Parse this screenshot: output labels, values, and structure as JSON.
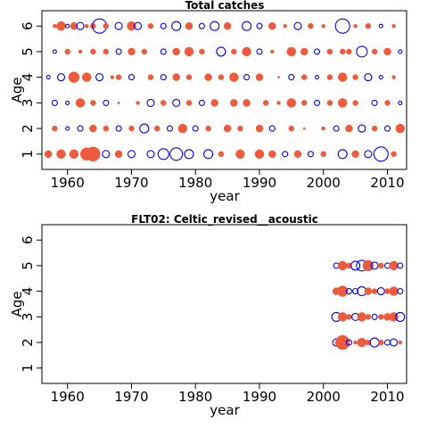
{
  "figure": {
    "colors": {
      "positive": "#EE5A3C",
      "negative": "#0000FF",
      "frame": "#000000"
    }
  },
  "chart_data": [
    {
      "type": "bubble",
      "title": "Total catches",
      "xlabel": "year",
      "ylabel": "Age",
      "xlim": [
        1956,
        2013
      ],
      "ylim": [
        0.4,
        6.6
      ],
      "xticks": [
        1960,
        1970,
        1980,
        1990,
        2000,
        2010
      ],
      "yticks": [
        1,
        2,
        3,
        4,
        5,
        6
      ],
      "grid": false,
      "legend": "none",
      "encoding": "residual bubbles: filled orange = positive, open blue = negative; radius ∝ |value|",
      "points": [
        {
          "year": 1958,
          "age": 6,
          "r": 0.2
        },
        {
          "year": 1959,
          "age": 6,
          "r": 0.5
        },
        {
          "year": 1960,
          "age": 6,
          "r": -0.2
        },
        {
          "year": 1961,
          "age": 6,
          "r": 0.4
        },
        {
          "year": 1962,
          "age": 6,
          "r": -0.4
        },
        {
          "year": 1963,
          "age": 6,
          "r": 0.2
        },
        {
          "year": 1964,
          "age": 6,
          "r": 0.3
        },
        {
          "year": 1965,
          "age": 6,
          "r": -0.8
        },
        {
          "year": 1966,
          "age": 6,
          "r": 0.3
        },
        {
          "year": 1968,
          "age": 6,
          "r": -0.4
        },
        {
          "year": 1970,
          "age": 6,
          "r": 0.5
        },
        {
          "year": 1971,
          "age": 6,
          "r": -0.4
        },
        {
          "year": 1973,
          "age": 6,
          "r": 0.3
        },
        {
          "year": 1975,
          "age": 6,
          "r": -0.3
        },
        {
          "year": 1977,
          "age": 6,
          "r": -0.5
        },
        {
          "year": 1979,
          "age": 6,
          "r": 0.4
        },
        {
          "year": 1981,
          "age": 6,
          "r": -0.3
        },
        {
          "year": 1983,
          "age": 6,
          "r": -0.5
        },
        {
          "year": 1985,
          "age": 6,
          "r": 0.4
        },
        {
          "year": 1988,
          "age": 6,
          "r": -0.5
        },
        {
          "year": 1990,
          "age": 6,
          "r": -0.3
        },
        {
          "year": 1992,
          "age": 6,
          "r": 0.4
        },
        {
          "year": 1994,
          "age": 6,
          "r": 0.2
        },
        {
          "year": 1996,
          "age": 6,
          "r": -0.4
        },
        {
          "year": 1998,
          "age": 6,
          "r": 0.3
        },
        {
          "year": 2000,
          "age": 6,
          "r": 0.2
        },
        {
          "year": 2003,
          "age": 6,
          "r": -0.8
        },
        {
          "year": 2005,
          "age": 6,
          "r": 0.2
        },
        {
          "year": 2007,
          "age": 6,
          "r": 0.3
        },
        {
          "year": 2009,
          "age": 6,
          "r": -0.2
        },
        {
          "year": 2011,
          "age": 6,
          "r": 0.2
        },
        {
          "year": 1958,
          "age": 5,
          "r": -0.2
        },
        {
          "year": 1960,
          "age": 5,
          "r": 0.3
        },
        {
          "year": 1962,
          "age": 5,
          "r": 0.2
        },
        {
          "year": 1964,
          "age": 5,
          "r": 0.3
        },
        {
          "year": 1966,
          "age": 5,
          "r": 0.3
        },
        {
          "year": 1968,
          "age": 5,
          "r": -0.3
        },
        {
          "year": 1970,
          "age": 5,
          "r": 0.4
        },
        {
          "year": 1972,
          "age": 5,
          "r": 0.3
        },
        {
          "year": 1975,
          "age": 5,
          "r": -0.3
        },
        {
          "year": 1977,
          "age": 5,
          "r": 0.4
        },
        {
          "year": 1979,
          "age": 5,
          "r": 0.5
        },
        {
          "year": 1981,
          "age": 5,
          "r": 0.3
        },
        {
          "year": 1984,
          "age": 5,
          "r": -0.5
        },
        {
          "year": 1986,
          "age": 5,
          "r": 0.3
        },
        {
          "year": 1988,
          "age": 5,
          "r": 0.5
        },
        {
          "year": 1990,
          "age": 5,
          "r": -0.3
        },
        {
          "year": 1992,
          "age": 5,
          "r": 0.2
        },
        {
          "year": 1995,
          "age": 5,
          "r": 0.5
        },
        {
          "year": 1997,
          "age": 5,
          "r": 0.4
        },
        {
          "year": 1999,
          "age": 5,
          "r": -0.3
        },
        {
          "year": 2001,
          "age": 5,
          "r": 0.3
        },
        {
          "year": 2003,
          "age": 5,
          "r": 0.3
        },
        {
          "year": 2004,
          "age": 5,
          "r": 0.3
        },
        {
          "year": 2006,
          "age": 5,
          "r": -0.6
        },
        {
          "year": 2008,
          "age": 5,
          "r": 0.3
        },
        {
          "year": 2010,
          "age": 5,
          "r": 0.4
        },
        {
          "year": 2012,
          "age": 5,
          "r": -0.2
        },
        {
          "year": 1957,
          "age": 4,
          "r": -0.2
        },
        {
          "year": 1959,
          "age": 4,
          "r": -0.4
        },
        {
          "year": 1961,
          "age": 4,
          "r": 0.6
        },
        {
          "year": 1963,
          "age": 4,
          "r": 0.5
        },
        {
          "year": 1965,
          "age": 4,
          "r": -0.4
        },
        {
          "year": 1967,
          "age": 4,
          "r": 0.2
        },
        {
          "year": 1968,
          "age": 4,
          "r": 0.3
        },
        {
          "year": 1970,
          "age": 4,
          "r": -0.3
        },
        {
          "year": 1973,
          "age": 4,
          "r": 0.3
        },
        {
          "year": 1975,
          "age": 4,
          "r": -0.3
        },
        {
          "year": 1977,
          "age": 4,
          "r": 0.4
        },
        {
          "year": 1979,
          "age": 4,
          "r": 0.3
        },
        {
          "year": 1982,
          "age": 4,
          "r": 0.4
        },
        {
          "year": 1984,
          "age": 4,
          "r": 0.3
        },
        {
          "year": 1986,
          "age": 4,
          "r": 0.5
        },
        {
          "year": 1988,
          "age": 4,
          "r": -0.3
        },
        {
          "year": 1990,
          "age": 4,
          "r": 0.4
        },
        {
          "year": 1993,
          "age": 4,
          "r": 0.1
        },
        {
          "year": 1995,
          "age": 4,
          "r": -0.3
        },
        {
          "year": 1997,
          "age": 4,
          "r": 0.3
        },
        {
          "year": 1999,
          "age": 4,
          "r": -0.2
        },
        {
          "year": 2001,
          "age": 4,
          "r": 0.3
        },
        {
          "year": 2003,
          "age": 4,
          "r": 0.5
        },
        {
          "year": 2005,
          "age": 4,
          "r": 0.3
        },
        {
          "year": 2007,
          "age": 4,
          "r": -0.4
        },
        {
          "year": 2009,
          "age": 4,
          "r": -0.2
        },
        {
          "year": 2011,
          "age": 4,
          "r": 0.2
        },
        {
          "year": 1958,
          "age": 3,
          "r": -0.3
        },
        {
          "year": 1960,
          "age": 3,
          "r": -0.2
        },
        {
          "year": 1962,
          "age": 3,
          "r": 0.5
        },
        {
          "year": 1964,
          "age": 3,
          "r": 0.3
        },
        {
          "year": 1966,
          "age": 3,
          "r": -0.3
        },
        {
          "year": 1968,
          "age": 3,
          "r": 0.1
        },
        {
          "year": 1971,
          "age": 3,
          "r": 0.2
        },
        {
          "year": 1973,
          "age": 3,
          "r": -0.4
        },
        {
          "year": 1975,
          "age": 3,
          "r": 0.3
        },
        {
          "year": 1977,
          "age": 3,
          "r": -0.4
        },
        {
          "year": 1979,
          "age": 3,
          "r": 0.3
        },
        {
          "year": 1981,
          "age": 3,
          "r": -0.3
        },
        {
          "year": 1983,
          "age": 3,
          "r": 0.4
        },
        {
          "year": 1986,
          "age": 3,
          "r": 0.4
        },
        {
          "year": 1988,
          "age": 3,
          "r": 0.4
        },
        {
          "year": 1991,
          "age": 3,
          "r": 0.3
        },
        {
          "year": 1993,
          "age": 3,
          "r": 0.2
        },
        {
          "year": 1995,
          "age": 3,
          "r": 0.5
        },
        {
          "year": 1997,
          "age": 3,
          "r": 0.3
        },
        {
          "year": 1999,
          "age": 3,
          "r": -0.3
        },
        {
          "year": 2001,
          "age": 3,
          "r": 0.3
        },
        {
          "year": 2003,
          "age": 3,
          "r": 0.5
        },
        {
          "year": 2005,
          "age": 3,
          "r": 0.3
        },
        {
          "year": 2008,
          "age": 3,
          "r": -0.3
        },
        {
          "year": 2010,
          "age": 3,
          "r": 0.3
        },
        {
          "year": 2012,
          "age": 3,
          "r": -0.2
        },
        {
          "year": 1958,
          "age": 2,
          "r": 0.3
        },
        {
          "year": 1960,
          "age": 2,
          "r": -0.2
        },
        {
          "year": 1962,
          "age": 2,
          "r": -0.3
        },
        {
          "year": 1964,
          "age": 2,
          "r": 0.4
        },
        {
          "year": 1966,
          "age": 2,
          "r": 0.3
        },
        {
          "year": 1968,
          "age": 2,
          "r": -0.3
        },
        {
          "year": 1970,
          "age": 2,
          "r": 0.3
        },
        {
          "year": 1972,
          "age": 2,
          "r": -0.5
        },
        {
          "year": 1974,
          "age": 2,
          "r": 0.3
        },
        {
          "year": 1976,
          "age": 2,
          "r": -0.3
        },
        {
          "year": 1978,
          "age": 2,
          "r": 0.5
        },
        {
          "year": 1980,
          "age": 2,
          "r": -0.3
        },
        {
          "year": 1982,
          "age": 2,
          "r": 0.3
        },
        {
          "year": 1985,
          "age": 2,
          "r": 0.4
        },
        {
          "year": 1987,
          "age": 2,
          "r": 0.3
        },
        {
          "year": 1990,
          "age": 2,
          "r": 0.4
        },
        {
          "year": 1992,
          "age": 2,
          "r": -0.3
        },
        {
          "year": 1995,
          "age": 2,
          "r": 0.3
        },
        {
          "year": 1997,
          "age": 2,
          "r": 0.1
        },
        {
          "year": 2000,
          "age": 2,
          "r": 0.2
        },
        {
          "year": 2002,
          "age": 2,
          "r": -0.3
        },
        {
          "year": 2004,
          "age": 2,
          "r": 0.4
        },
        {
          "year": 2006,
          "age": 2,
          "r": -0.4
        },
        {
          "year": 2008,
          "age": 2,
          "r": 0.3
        },
        {
          "year": 2010,
          "age": 2,
          "r": -0.3
        },
        {
          "year": 2012,
          "age": 2,
          "r": 0.5
        },
        {
          "year": 1957,
          "age": 1,
          "r": 0.4
        },
        {
          "year": 1959,
          "age": 1,
          "r": 0.5
        },
        {
          "year": 1961,
          "age": 1,
          "r": 0.5
        },
        {
          "year": 1963,
          "age": 1,
          "r": 0.7
        },
        {
          "year": 1964,
          "age": 1,
          "r": 0.8
        },
        {
          "year": 1966,
          "age": 1,
          "r": -0.4
        },
        {
          "year": 1968,
          "age": 1,
          "r": 0.4
        },
        {
          "year": 1970,
          "age": 1,
          "r": -0.4
        },
        {
          "year": 1973,
          "age": 1,
          "r": -0.4
        },
        {
          "year": 1975,
          "age": 1,
          "r": -0.6
        },
        {
          "year": 1977,
          "age": 1,
          "r": -0.7
        },
        {
          "year": 1979,
          "age": 1,
          "r": -0.5
        },
        {
          "year": 1982,
          "age": 1,
          "r": -0.5
        },
        {
          "year": 1984,
          "age": 1,
          "r": 0.3
        },
        {
          "year": 1987,
          "age": 1,
          "r": 0.5
        },
        {
          "year": 1990,
          "age": 1,
          "r": 0.5
        },
        {
          "year": 1992,
          "age": 1,
          "r": 0.4
        },
        {
          "year": 1994,
          "age": 1,
          "r": -0.3
        },
        {
          "year": 1996,
          "age": 1,
          "r": 0.4
        },
        {
          "year": 1998,
          "age": 1,
          "r": -0.3
        },
        {
          "year": 2000,
          "age": 1,
          "r": 0.3
        },
        {
          "year": 2003,
          "age": 1,
          "r": -0.5
        },
        {
          "year": 2005,
          "age": 1,
          "r": 0.4
        },
        {
          "year": 2007,
          "age": 1,
          "r": -0.4
        },
        {
          "year": 2009,
          "age": 1,
          "r": -0.8
        },
        {
          "year": 2011,
          "age": 1,
          "r": 0.3
        }
      ]
    },
    {
      "type": "bubble",
      "title": "FLT02: Celtic_revised__acoustic",
      "xlabel": "year",
      "ylabel": "Age",
      "xlim": [
        1956,
        2013
      ],
      "ylim": [
        0.4,
        6.6
      ],
      "xticks": [
        1960,
        1970,
        1980,
        1990,
        2000,
        2010
      ],
      "yticks": [
        1,
        2,
        3,
        4,
        5,
        6
      ],
      "grid": false,
      "legend": "none",
      "encoding": "residual bubbles: filled orange = positive, open blue = negative; radius ∝ |value|",
      "points": [
        {
          "year": 2002,
          "age": 5,
          "r": -0.3
        },
        {
          "year": 2003,
          "age": 5,
          "r": 0.5
        },
        {
          "year": 2004,
          "age": 5,
          "r": 0.3
        },
        {
          "year": 2005,
          "age": 5,
          "r": -0.5
        },
        {
          "year": 2006,
          "age": 5,
          "r": -0.6
        },
        {
          "year": 2007,
          "age": 5,
          "r": 0.6
        },
        {
          "year": 2008,
          "age": 5,
          "r": -0.4
        },
        {
          "year": 2009,
          "age": 5,
          "r": 0.3
        },
        {
          "year": 2010,
          "age": 5,
          "r": -0.3
        },
        {
          "year": 2011,
          "age": 5,
          "r": 0.5
        },
        {
          "year": 2012,
          "age": 5,
          "r": -0.3
        },
        {
          "year": 2002,
          "age": 4,
          "r": 0.4
        },
        {
          "year": 2003,
          "age": 4,
          "r": 0.6
        },
        {
          "year": 2004,
          "age": 4,
          "r": -0.3
        },
        {
          "year": 2005,
          "age": 4,
          "r": -0.3
        },
        {
          "year": 2006,
          "age": 4,
          "r": -0.5
        },
        {
          "year": 2007,
          "age": 4,
          "r": 0.4
        },
        {
          "year": 2008,
          "age": 4,
          "r": 0.3
        },
        {
          "year": 2009,
          "age": 4,
          "r": -0.4
        },
        {
          "year": 2010,
          "age": 4,
          "r": 0.3
        },
        {
          "year": 2011,
          "age": 4,
          "r": 0.5
        },
        {
          "year": 2012,
          "age": 4,
          "r": -0.3
        },
        {
          "year": 2002,
          "age": 3,
          "r": -0.5
        },
        {
          "year": 2003,
          "age": 3,
          "r": 0.5
        },
        {
          "year": 2004,
          "age": 3,
          "r": 0.3
        },
        {
          "year": 2005,
          "age": 3,
          "r": -0.4
        },
        {
          "year": 2006,
          "age": 3,
          "r": 0.5
        },
        {
          "year": 2007,
          "age": 3,
          "r": 0.3
        },
        {
          "year": 2008,
          "age": 3,
          "r": -0.3
        },
        {
          "year": 2009,
          "age": 3,
          "r": 0.3
        },
        {
          "year": 2010,
          "age": 3,
          "r": 0.4
        },
        {
          "year": 2011,
          "age": 3,
          "r": 0.5
        },
        {
          "year": 2012,
          "age": 3,
          "r": -0.5
        },
        {
          "year": 2002,
          "age": 2,
          "r": -0.4
        },
        {
          "year": 2003,
          "age": 2,
          "r": 0.8
        },
        {
          "year": 2004,
          "age": 2,
          "r": -0.3
        },
        {
          "year": 2005,
          "age": 2,
          "r": 0.2
        },
        {
          "year": 2006,
          "age": 2,
          "r": 0.5
        },
        {
          "year": 2007,
          "age": 2,
          "r": 0.3
        },
        {
          "year": 2008,
          "age": 2,
          "r": -0.5
        },
        {
          "year": 2009,
          "age": 2,
          "r": 0.3
        },
        {
          "year": 2010,
          "age": 2,
          "r": -0.3
        },
        {
          "year": 2011,
          "age": 2,
          "r": -0.4
        },
        {
          "year": 2012,
          "age": 2,
          "r": 0.2
        }
      ]
    }
  ]
}
